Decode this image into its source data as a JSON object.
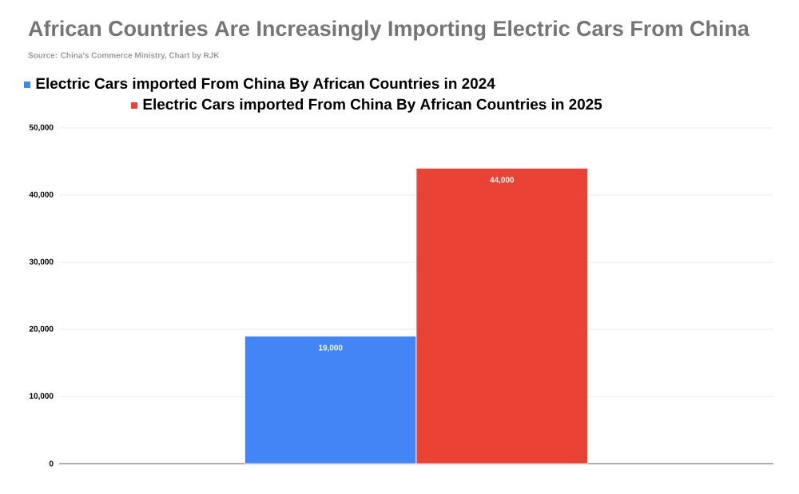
{
  "chart_data": {
    "type": "bar",
    "title": "African Countries Are Increasingly Importing Electric Cars From China",
    "subtitle": "Source: China's Commerce Ministry,   Chart by RJK",
    "categories": [
      null
    ],
    "series": [
      {
        "name": "Electric Cars imported From China By African Countries in 2024",
        "color": "#4285f4",
        "values": [
          19000
        ],
        "value_labels": [
          "19,000"
        ]
      },
      {
        "name": "Electric Cars imported From China By African Countries in 2025",
        "color": "#ea4335",
        "values": [
          44000
        ],
        "value_labels": [
          "44,000"
        ]
      }
    ],
    "ylim": [
      0,
      50000
    ],
    "yticks": [
      {
        "value": 0,
        "label": "0"
      },
      {
        "value": 10000,
        "label": "10,000"
      },
      {
        "value": 20000,
        "label": "20,000"
      },
      {
        "value": 30000,
        "label": "30,000"
      },
      {
        "value": 40000,
        "label": "40,000"
      },
      {
        "value": 50000,
        "label": "50,000"
      }
    ],
    "grid": "y",
    "legend": "top"
  }
}
